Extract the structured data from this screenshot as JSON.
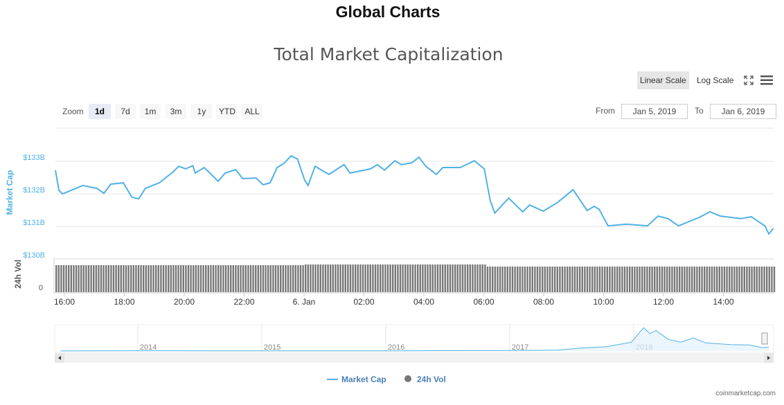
{
  "header": {
    "title": "Global Charts"
  },
  "chart_title": "Total Market Capitalization",
  "toolbar": {
    "linear": "Linear Scale",
    "log": "Log Scale",
    "fullscreen_icon": "fullscreen-icon",
    "menu_icon": "hamburger-menu-icon"
  },
  "zoom": {
    "label": "Zoom",
    "options": [
      "1d",
      "7d",
      "1m",
      "3m",
      "1y",
      "YTD",
      "ALL"
    ],
    "selected": "1d"
  },
  "range": {
    "from_label": "From",
    "from": "Jan 5, 2019",
    "to_label": "To",
    "to": "Jan 6, 2019"
  },
  "colors": {
    "line": "#4fb1e6",
    "bars": "#777777",
    "axis_label": "#4fb1e6"
  },
  "chart_data": {
    "type": "line",
    "title": "Total Market Capitalization",
    "ylabel": "Market Cap",
    "y2label": "24h Vol",
    "yticks": [
      "$133B",
      "$132B",
      "$131B",
      "$130B"
    ],
    "ylim": [
      130,
      133.3
    ],
    "vol_ticks": [
      "0"
    ],
    "xticks": [
      "16:00",
      "18:00",
      "20:00",
      "22:00",
      "6. Jan",
      "02:00",
      "04:00",
      "06:00",
      "08:00",
      "10:00",
      "12:00",
      "14:00"
    ],
    "grid": true,
    "series": [
      {
        "name": "Market Cap",
        "unit": "B USD",
        "points": [
          [
            "01-05 15:42",
            132.6
          ],
          [
            "01-05 15:49",
            131.98
          ],
          [
            "01-05 15:56",
            131.87
          ],
          [
            "01-05 16:10",
            131.96
          ],
          [
            "01-05 16:37",
            132.13
          ],
          [
            "01-05 17:05",
            132.04
          ],
          [
            "01-05 17:19",
            131.89
          ],
          [
            "01-05 17:33",
            132.17
          ],
          [
            "01-05 17:58",
            132.21
          ],
          [
            "01-05 18:15",
            131.77
          ],
          [
            "01-05 18:29",
            131.72
          ],
          [
            "01-05 18:42",
            132.04
          ],
          [
            "01-05 19:10",
            132.21
          ],
          [
            "01-05 19:38",
            132.55
          ],
          [
            "01-05 19:49",
            132.72
          ],
          [
            "01-05 20:03",
            132.64
          ],
          [
            "01-05 20:17",
            132.74
          ],
          [
            "01-05 20:22",
            132.51
          ],
          [
            "01-05 20:40",
            132.68
          ],
          [
            "01-05 20:54",
            132.47
          ],
          [
            "01-05 21:08",
            132.26
          ],
          [
            "01-05 21:22",
            132.51
          ],
          [
            "01-05 21:43",
            132.62
          ],
          [
            "01-05 21:57",
            132.34
          ],
          [
            "01-05 22:24",
            132.36
          ],
          [
            "01-05 22:38",
            132.15
          ],
          [
            "01-05 22:52",
            132.21
          ],
          [
            "01-05 23:06",
            132.68
          ],
          [
            "01-05 23:20",
            132.81
          ],
          [
            "01-05 23:34",
            133.04
          ],
          [
            "01-05 23:47",
            132.94
          ],
          [
            "01-06 00:01",
            132.3
          ],
          [
            "01-06 00:08",
            132.13
          ],
          [
            "01-06 00:22",
            132.72
          ],
          [
            "01-06 00:50",
            132.47
          ],
          [
            "01-06 01:20",
            132.77
          ],
          [
            "01-06 01:32",
            132.51
          ],
          [
            "01-06 02:13",
            132.64
          ],
          [
            "01-06 02:27",
            132.77
          ],
          [
            "01-06 02:41",
            132.6
          ],
          [
            "01-06 03:02",
            132.89
          ],
          [
            "01-06 03:15",
            132.77
          ],
          [
            "01-06 03:36",
            132.83
          ],
          [
            "01-06 03:50",
            133.0
          ],
          [
            "01-06 04:04",
            132.72
          ],
          [
            "01-06 04:25",
            132.47
          ],
          [
            "01-06 04:38",
            132.68
          ],
          [
            "01-06 05:13",
            132.68
          ],
          [
            "01-06 05:41",
            132.89
          ],
          [
            "01-06 06:01",
            132.64
          ],
          [
            "01-06 06:13",
            131.66
          ],
          [
            "01-06 06:22",
            131.28
          ],
          [
            "01-06 06:50",
            131.74
          ],
          [
            "01-06 07:18",
            131.32
          ],
          [
            "01-06 07:32",
            131.53
          ],
          [
            "01-06 07:59",
            131.34
          ],
          [
            "01-06 08:27",
            131.6
          ],
          [
            "01-06 08:59",
            132.0
          ],
          [
            "01-06 09:27",
            131.36
          ],
          [
            "01-06 09:41",
            131.49
          ],
          [
            "01-06 09:51",
            131.4
          ],
          [
            "01-06 10:09",
            130.89
          ],
          [
            "01-06 10:46",
            130.94
          ],
          [
            "01-06 11:28",
            130.89
          ],
          [
            "01-06 11:49",
            131.19
          ],
          [
            "01-06 12:09",
            131.11
          ],
          [
            "01-06 12:30",
            130.89
          ],
          [
            "01-06 13:12",
            131.15
          ],
          [
            "01-06 13:33",
            131.32
          ],
          [
            "01-06 13:54",
            131.19
          ],
          [
            "01-06 14:35",
            131.11
          ],
          [
            "01-06 14:56",
            131.17
          ],
          [
            "01-06 15:10",
            131.02
          ],
          [
            "01-06 15:23",
            130.89
          ],
          [
            "01-06 15:31",
            130.64
          ],
          [
            "01-06 15:40",
            130.81
          ]
        ]
      },
      {
        "name": "24h Vol"
      }
    ],
    "navigator": {
      "xticks": [
        "2014",
        "2015",
        "2016",
        "2017",
        "2018"
      ],
      "points": [
        [
          2013.3,
          2
        ],
        [
          2013.9,
          10
        ],
        [
          2014.5,
          8
        ],
        [
          2015.0,
          4
        ],
        [
          2016.0,
          7
        ],
        [
          2017.0,
          17
        ],
        [
          2017.3,
          30
        ],
        [
          2017.5,
          100
        ],
        [
          2017.7,
          150
        ],
        [
          2017.9,
          300
        ],
        [
          2018.0,
          800
        ],
        [
          2018.05,
          600
        ],
        [
          2018.1,
          700
        ],
        [
          2018.2,
          400
        ],
        [
          2018.3,
          300
        ],
        [
          2018.4,
          450
        ],
        [
          2018.5,
          280
        ],
        [
          2018.7,
          220
        ],
        [
          2018.85,
          210
        ],
        [
          2018.95,
          120
        ],
        [
          2019.01,
          130
        ]
      ]
    },
    "legend": [
      "Market Cap",
      "24h Vol"
    ],
    "legend_position": "bottom"
  },
  "credit": "coinmarketcap.com"
}
